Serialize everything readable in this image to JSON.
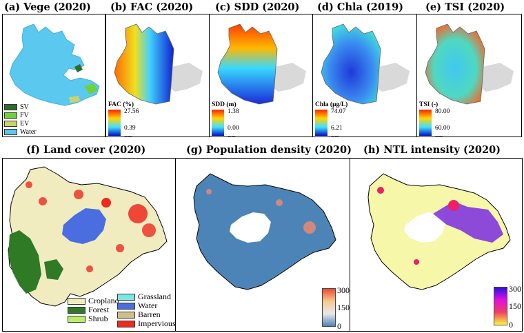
{
  "panels_top": [
    {
      "title": "(a) Vege (2020)"
    },
    {
      "title": "(b) FAC (2020)",
      "unit": "FAC (%)",
      "max": "27.56",
      "min": "0.39",
      "et": "ET"
    },
    {
      "title": "(c) SDD (2020)",
      "unit": "SDD (m)",
      "max": "1.38",
      "min": "0.00",
      "et": "ET"
    },
    {
      "title": "(d)  Chla (2019)",
      "unit": "Chla (μg/L)",
      "max": "74.07",
      "min": "6.21",
      "et": "ET"
    },
    {
      "title": "(e) TSI (2020)",
      "unit": "TSI (-)",
      "max": "80.00",
      "min": "60.00",
      "et": "ET"
    }
  ],
  "vege_legend": [
    "SV",
    "FV",
    "EV",
    "Water"
  ],
  "colors": {
    "sv": "#2e6b2e",
    "fv": "#6fd13a",
    "ev": "#c9d46a",
    "water": "#5bc8f0",
    "lake_gray": "#d9d9d9",
    "cropland": "#f1ecc0",
    "forest": "#2f7a25",
    "shrub": "#b7ef6b",
    "grassland": "#7ae8e0",
    "lc_water": "#4a6de0",
    "barren": "#cdbf8c",
    "impervious": "#ee2a1f",
    "pop_base": "#4d84b8",
    "ntl_base": "#f6f7a8"
  },
  "panels_bottom": [
    {
      "title": "(f) Land cover (2020)"
    },
    {
      "title": "(g) Population density (2020)",
      "max": "300",
      "mid": "150",
      "min": "0"
    },
    {
      "title": "(h) NTL intensity (2020)",
      "max": "300",
      "mid": "150",
      "min": "0"
    }
  ],
  "landcover_legend_left": [
    "Cropland",
    "Forest",
    "Shrub"
  ],
  "landcover_legend_right": [
    "Grassland",
    "Water",
    "Barren",
    "Impervious"
  ]
}
